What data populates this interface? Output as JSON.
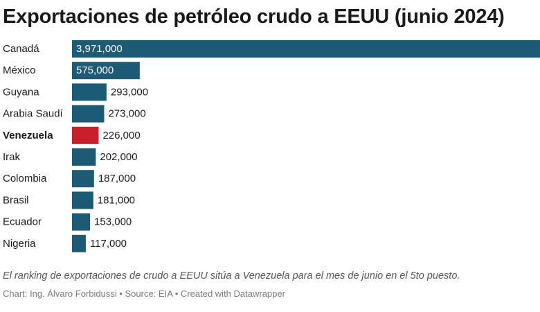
{
  "chart_data": {
    "type": "bar",
    "orientation": "horizontal",
    "title": "Exportaciones de petróleo crudo a EEUU (junio 2024)",
    "categories": [
      "Canadá",
      "México",
      "Guyana",
      "Arabia Saudí",
      "Venezuela",
      "Irak",
      "Colombia",
      "Brasil",
      "Ecuador",
      "Nigeria"
    ],
    "values": [
      3971000,
      575000,
      293000,
      273000,
      226000,
      202000,
      187000,
      181000,
      153000,
      117000
    ],
    "value_labels": [
      "3,971,000",
      "575,000",
      "293,000",
      "273,000",
      "226,000",
      "202,000",
      "187,000",
      "181,000",
      "153,000",
      "117,000"
    ],
    "highlight": "Venezuela",
    "xlim": [
      0,
      3971000
    ],
    "grid": false,
    "colors": {
      "bar": "#1d5a75",
      "highlight": "#c8202a",
      "label_inside": "#ffffff",
      "label_outside": "#1a1a1a"
    }
  },
  "note": "El ranking de exportaciones de crudo a EEUU sitúa a Venezuela para el mes de junio en el 5to puesto.",
  "footer": "Chart: Ing. Álvaro Forbidussi • Source: EIA • Created with Datawrapper"
}
